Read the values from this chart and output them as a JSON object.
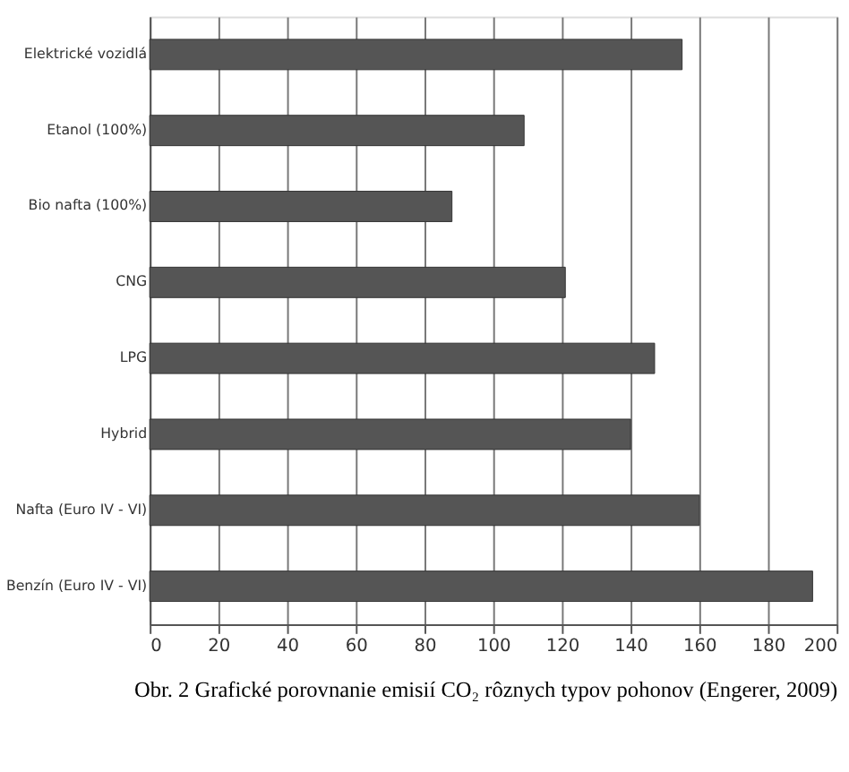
{
  "chart_data": {
    "type": "bar",
    "orientation": "horizontal",
    "title": "Obr. 2 Grafické porovnanie emisií CO₂ rôznych typov pohonov (Engerer, 2009)",
    "categories": [
      "Elektrické vozidlá",
      "Etanol (100%)",
      "Bio nafta (100%)",
      "CNG",
      "LPG",
      "Hybrid",
      "Nafta (Euro IV - VI)",
      "Benzín (Euro IV - VI)"
    ],
    "values": [
      155,
      109,
      88,
      121,
      147,
      140,
      160,
      193
    ],
    "color": "#555555",
    "xlim": [
      0,
      200
    ],
    "xticks": [
      0,
      20,
      40,
      60,
      80,
      100,
      120,
      140,
      160,
      180,
      200
    ],
    "grid": "x"
  }
}
